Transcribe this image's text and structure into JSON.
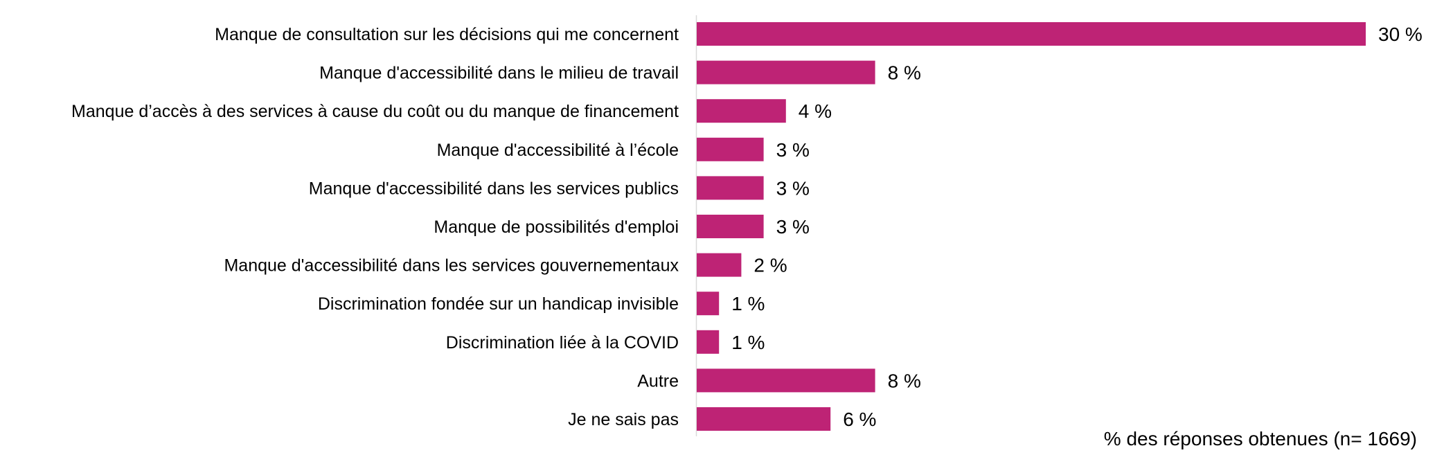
{
  "chart_data": {
    "type": "bar",
    "orientation": "horizontal",
    "categories": [
      "Manque de consultation sur les décisions qui me concernent",
      "Manque d'accessibilité dans le milieu de travail",
      "Manque d’accès à des services à cause du coût ou du manque de financement",
      "Manque d'accessibilité à l’école",
      "Manque d'accessibilité dans les services publics",
      "Manque de possibilités d'emploi",
      "Manque d'accessibilité dans les services gouvernementaux",
      "Discrimination fondée sur un handicap invisible",
      "Discrimination liée à la COVID",
      "Autre",
      "Je ne sais pas"
    ],
    "values": [
      30,
      8,
      4,
      3,
      3,
      3,
      2,
      1,
      1,
      8,
      6
    ],
    "value_labels": [
      "30 %",
      "8 %",
      "4 %",
      "3 %",
      "3 %",
      "3 %",
      "2 %",
      "1 %",
      "1 %",
      "8 %",
      "6 %"
    ],
    "xlabel": "% des réponses obtenues (n= 1669)",
    "ylabel": "",
    "grid": false,
    "bar_color": "#BE2375"
  }
}
